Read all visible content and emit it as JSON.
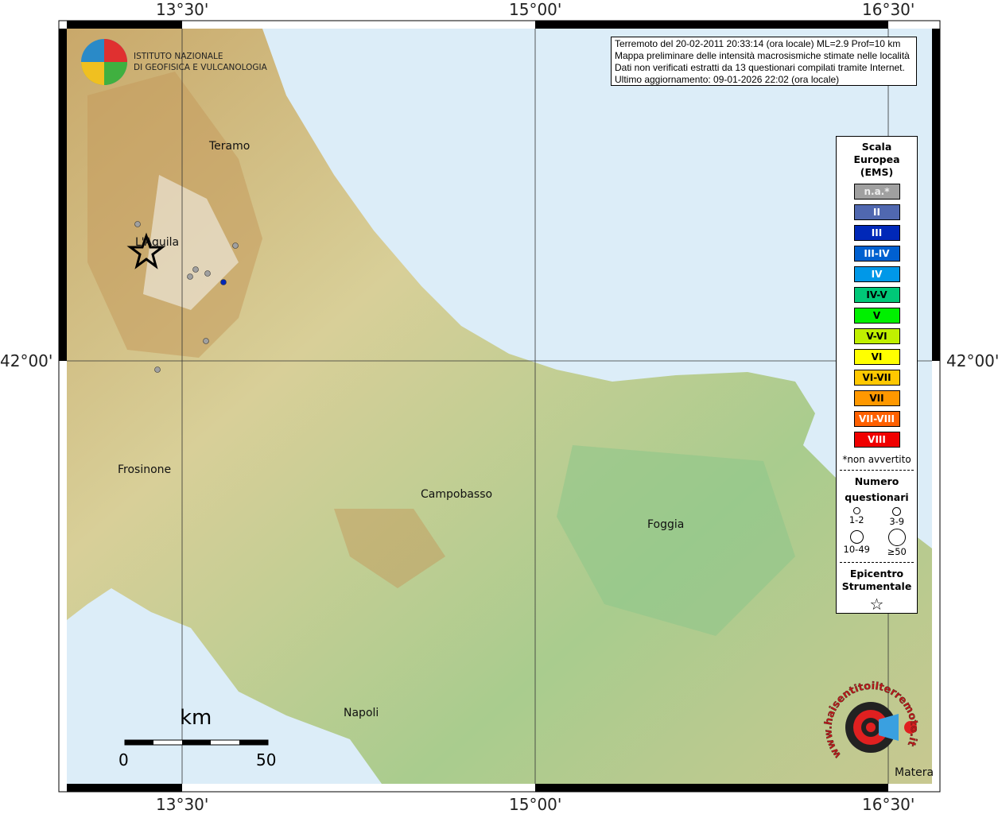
{
  "grid": {
    "lon_labels": [
      "13°30'",
      "15°00'",
      "16°30'"
    ],
    "lat_label": "42°00'"
  },
  "logo": {
    "line1": "ISTITUTO NAZIONALE",
    "line2": "DI GEOFISICA E VULCANOLOGIA"
  },
  "info": {
    "lines": [
      "Terremoto del 20-02-2011 20:33:14 (ora locale) ML=2.9 Prof=10 km",
      "Mappa preliminare delle intensità macrosismiche stimate nelle località",
      "Dati non verificati estratti da 13 questionari compilati tramite Internet.",
      "Ultimo aggiornamento: 09-01-2026 22:02 (ora locale)"
    ]
  },
  "legend": {
    "title": [
      "Scala",
      "Europea",
      "(EMS)"
    ],
    "items": [
      {
        "label": "n.a.*",
        "color": "#a0a0a0",
        "text": "#eee"
      },
      {
        "label": "II",
        "color": "#5068b0",
        "text": "#fff"
      },
      {
        "label": "III",
        "color": "#0028b8",
        "text": "#fff"
      },
      {
        "label": "III-IV",
        "color": "#0060d0",
        "text": "#fff"
      },
      {
        "label": "IV",
        "color": "#0098e8",
        "text": "#fff"
      },
      {
        "label": "IV-V",
        "color": "#00c878",
        "text": "#000"
      },
      {
        "label": "V",
        "color": "#00f000",
        "text": "#000"
      },
      {
        "label": "V-VI",
        "color": "#c0f000",
        "text": "#000"
      },
      {
        "label": "VI",
        "color": "#ffff00",
        "text": "#000"
      },
      {
        "label": "VI-VII",
        "color": "#ffc800",
        "text": "#000"
      },
      {
        "label": "VII",
        "color": "#ff9800",
        "text": "#000"
      },
      {
        "label": "VII-VIII",
        "color": "#ff6000",
        "text": "#fff"
      },
      {
        "label": "VIII",
        "color": "#f00000",
        "text": "#fff"
      }
    ],
    "note": "*non avvertito",
    "size_title": [
      "Numero",
      "questionari"
    ],
    "sizes": [
      "1-2",
      "3-9",
      "10-49",
      "≥50"
    ],
    "epi_title": [
      "Epicentro",
      "Strumentale"
    ]
  },
  "cities": [
    {
      "name": "Teramo"
    },
    {
      "name": "L'Aquila"
    },
    {
      "name": "Frosinone"
    },
    {
      "name": "Campobasso"
    },
    {
      "name": "Foggia"
    },
    {
      "name": "Napoli"
    },
    {
      "name": "Matera"
    }
  ],
  "points": [
    {
      "intensity": "n.a.*"
    },
    {
      "intensity": "n.a.*"
    },
    {
      "intensity": "n.a.*"
    },
    {
      "intensity": "n.a.*"
    },
    {
      "intensity": "n.a.*"
    },
    {
      "intensity": "III"
    },
    {
      "intensity": "n.a.*"
    },
    {
      "intensity": "n.a.*"
    }
  ],
  "scale": {
    "unit": "km",
    "min": "0",
    "max": "50"
  },
  "badge": {
    "text": "www.haisentitoilterremoto.it"
  }
}
